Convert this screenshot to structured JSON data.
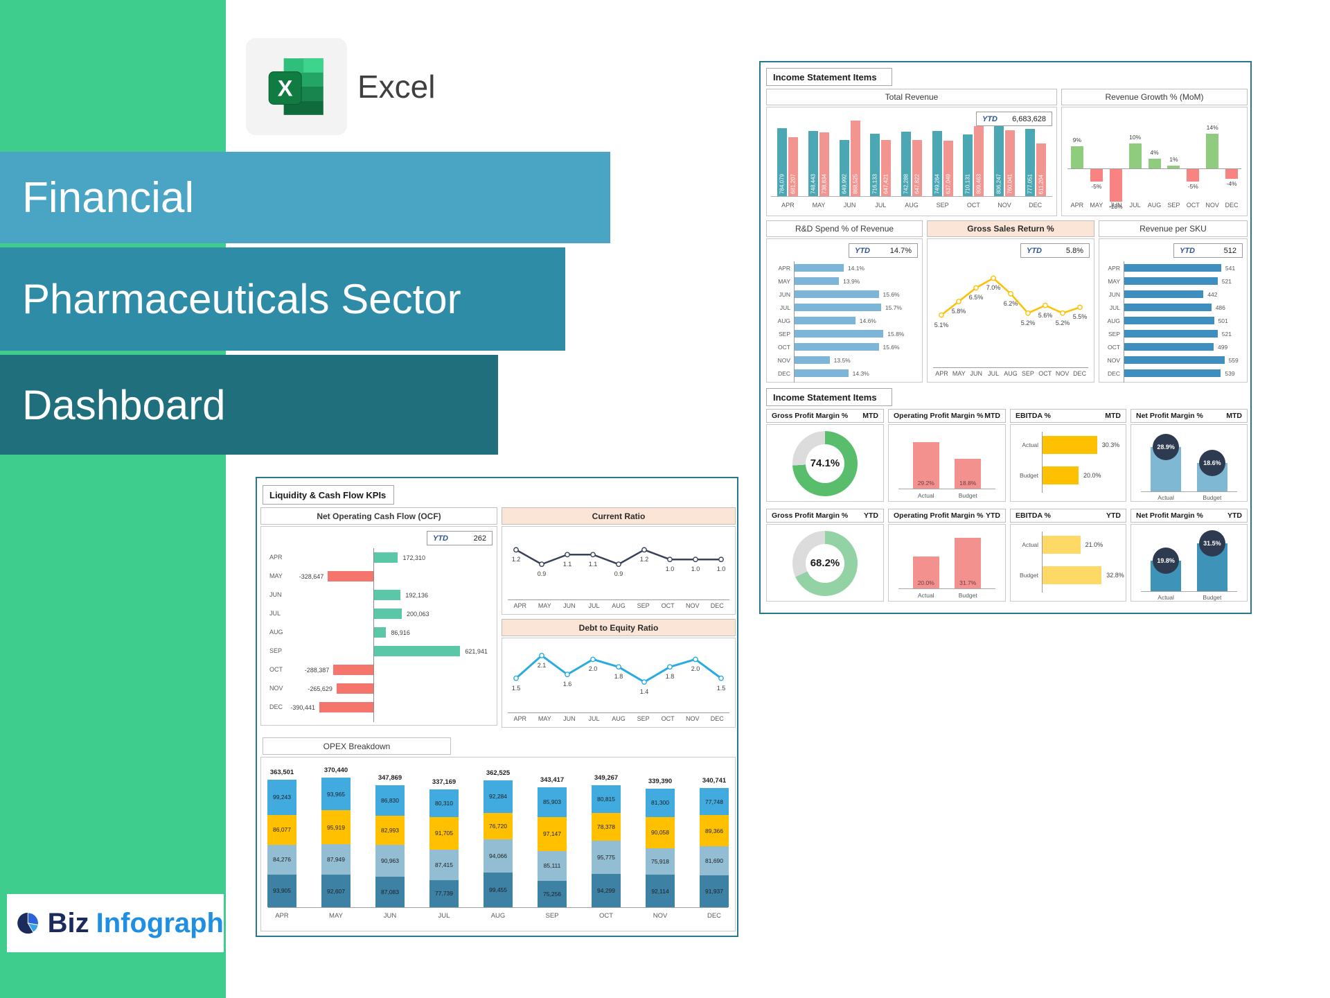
{
  "branding": {
    "app_label": "Excel",
    "excel_icon_letter": "X",
    "logo_biz": "Biz",
    "logo_infograph": "Infograph"
  },
  "titles": {
    "line1": "Financial",
    "line2": "Pharmaceuticals Sector",
    "line3": "Dashboard"
  },
  "right_panel": {
    "section1_label": "Income Statement Items",
    "section2_label": "Income Statement Items"
  },
  "left_panel": {
    "section_label": "Liquidity & Cash Flow KPIs"
  },
  "months": [
    "APR",
    "MAY",
    "JUN",
    "JUL",
    "AUG",
    "SEP",
    "OCT",
    "NOV",
    "DEC"
  ],
  "chart_data": [
    {
      "id": "total_revenue",
      "type": "bar",
      "title": "Total Revenue",
      "ytd_label": "YTD",
      "ytd_value": "6,683,628",
      "categories": [
        "APR",
        "MAY",
        "JUN",
        "JUL",
        "AUG",
        "SEP",
        "OCT",
        "NOV",
        "DEC"
      ],
      "series": [
        {
          "name": "series_1",
          "color": "#4BA7B3",
          "values": [
            784079,
            748443,
            649992,
            716133,
            742288,
            749264,
            710131,
            806247,
            777051
          ]
        },
        {
          "name": "series_2",
          "color": "#F2948F",
          "values": [
            681207,
            738834,
            868525,
            647421,
            647822,
            637049,
            809463,
            760041,
            611204
          ]
        }
      ]
    },
    {
      "id": "revenue_growth",
      "type": "bar",
      "title": "Revenue Growth % (MoM)",
      "categories": [
        "APR",
        "MAY",
        "JUN",
        "JUL",
        "AUG",
        "SEP",
        "OCT",
        "NOV",
        "DEC"
      ],
      "values": [
        9,
        -5,
        -13,
        10,
        4,
        1,
        -5,
        14,
        -4
      ],
      "unit": "%",
      "color_positive": "#90CC7E",
      "color_negative": "#F98380"
    },
    {
      "id": "rnd_spend",
      "type": "bar-horizontal",
      "title": "R&D Spend % of Revenue",
      "ytd_label": "YTD",
      "ytd_value": "14.7%",
      "categories": [
        "APR",
        "MAY",
        "JUN",
        "JUL",
        "AUG",
        "SEP",
        "OCT",
        "NOV",
        "DEC"
      ],
      "values": [
        14.1,
        13.9,
        15.6,
        15.7,
        14.6,
        15.8,
        15.6,
        13.5,
        14.3
      ],
      "unit": "%",
      "color": "#7CB5D8",
      "xlim": [
        12,
        16
      ]
    },
    {
      "id": "gross_sales_return",
      "type": "line",
      "title": "Gross Sales Return %",
      "ytd_label": "YTD",
      "ytd_value": "5.8%",
      "categories": [
        "APR",
        "MAY",
        "JUN",
        "JUL",
        "AUG",
        "SEP",
        "OCT",
        "NOV",
        "DEC"
      ],
      "values": [
        5.1,
        5.8,
        6.5,
        7.0,
        6.2,
        5.2,
        5.6,
        5.2,
        5.5
      ],
      "unit": "%",
      "color": "#FFC000",
      "ylim": [
        4.3,
        7.8
      ]
    },
    {
      "id": "revenue_per_sku",
      "type": "bar-horizontal",
      "title": "Revenue per SKU",
      "ytd_label": "YTD",
      "ytd_value": "512",
      "categories": [
        "APR",
        "MAY",
        "JUN",
        "JUL",
        "AUG",
        "SEP",
        "OCT",
        "NOV",
        "DEC"
      ],
      "values": [
        541,
        521,
        442,
        486,
        501,
        521,
        499,
        559,
        539
      ],
      "color": "#3E8FBF",
      "xlim": [
        0,
        580
      ]
    },
    {
      "id": "gross_profit_mtd",
      "type": "donut",
      "title": "Gross Profit Margin %",
      "period": "MTD",
      "value": 74.1,
      "label": "74.1%",
      "color": "#58BE6C",
      "track": "#DCDCDC"
    },
    {
      "id": "operating_profit_mtd",
      "type": "bar",
      "title": "Operating Profit Margin %",
      "period": "MTD",
      "categories": [
        "Actual",
        "Budget"
      ],
      "values": [
        29.2,
        18.8
      ],
      "labels": [
        "29.2%",
        "18.8%"
      ],
      "color": "#F2918D"
    },
    {
      "id": "ebitda_mtd",
      "type": "bar-horizontal",
      "title": "EBITDA %",
      "period": "MTD",
      "categories": [
        "Actual",
        "Budget"
      ],
      "values": [
        30.3,
        20.0
      ],
      "labels": [
        "30.3%",
        "20.0%"
      ],
      "color": "#FFC000"
    },
    {
      "id": "net_profit_mtd",
      "type": "bar",
      "title": "Net Profit Margin %",
      "period": "MTD",
      "categories": [
        "Actual",
        "Budget"
      ],
      "values": [
        28.9,
        18.6
      ],
      "labels": [
        "28.9%",
        "18.6%"
      ],
      "bar_color": "#7FB8D3",
      "badge_color": "#2E3A50"
    },
    {
      "id": "gross_profit_ytd",
      "type": "donut",
      "title": "Gross Profit Margin %",
      "period": "YTD",
      "value": 68.2,
      "label": "68.2%",
      "color": "#92D2A4",
      "track": "#DCDCDC"
    },
    {
      "id": "operating_profit_ytd",
      "type": "bar",
      "title": "Operating Profit Margin %",
      "period": "YTD",
      "categories": [
        "Actual",
        "Budget"
      ],
      "values": [
        20.0,
        31.7
      ],
      "labels": [
        "20.0%",
        "31.7%"
      ],
      "color": "#F2918D"
    },
    {
      "id": "ebitda_ytd",
      "type": "bar-horizontal",
      "title": "EBITDA %",
      "period": "YTD",
      "categories": [
        "Actual",
        "Budget"
      ],
      "values": [
        21.0,
        32.8
      ],
      "labels": [
        "21.0%",
        "32.8%"
      ],
      "color": "#FFD966"
    },
    {
      "id": "net_profit_ytd",
      "type": "bar",
      "title": "Net Profit Margin %",
      "period": "YTD",
      "categories": [
        "Actual",
        "Budget"
      ],
      "values": [
        19.8,
        31.5
      ],
      "labels": [
        "19.8%",
        "31.5%"
      ],
      "bar_color": "#3D93B8",
      "badge_color": "#2E3A50"
    },
    {
      "id": "ocf",
      "type": "bar-horizontal",
      "title": "Net Operating Cash Flow (OCF)",
      "ytd_label": "YTD",
      "ytd_value": "262",
      "categories": [
        "APR",
        "MAY",
        "JUN",
        "JUL",
        "AUG",
        "SEP",
        "OCT",
        "NOV",
        "DEC"
      ],
      "values": [
        172310,
        -328647,
        192136,
        200063,
        86916,
        621941,
        -288387,
        -265629,
        -390441
      ],
      "color_positive": "#5AC7A9",
      "color_negative": "#F4756B"
    },
    {
      "id": "current_ratio",
      "type": "line",
      "title": "Current Ratio",
      "categories": [
        "APR",
        "MAY",
        "JUN",
        "JUL",
        "AUG",
        "SEP",
        "OCT",
        "NOV",
        "DEC"
      ],
      "values": [
        1.2,
        0.9,
        1.1,
        1.1,
        0.9,
        1.2,
        1.0,
        1.0,
        1.0
      ],
      "color": "#37415A",
      "ylim": [
        0.7,
        1.45
      ]
    },
    {
      "id": "debt_to_equity",
      "type": "line",
      "title": "Debt to Equity Ratio",
      "categories": [
        "APR",
        "MAY",
        "JUN",
        "JUL",
        "AUG",
        "SEP",
        "OCT",
        "NOV",
        "DEC"
      ],
      "values": [
        1.5,
        2.1,
        1.6,
        2.0,
        1.8,
        1.4,
        1.8,
        2.0,
        1.5
      ],
      "color": "#29ABE2",
      "ylim": [
        1.2,
        2.3
      ]
    },
    {
      "id": "opex",
      "type": "stacked-bar",
      "title": "OPEX Breakdown",
      "categories": [
        "APR",
        "MAY",
        "JUN",
        "JUL",
        "AUG",
        "SEP",
        "OCT",
        "NOV",
        "DEC"
      ],
      "totals": [
        363501,
        370440,
        347869,
        337169,
        362525,
        343417,
        349267,
        339390,
        340741
      ],
      "series": [
        {
          "name": "segment_1",
          "color": "#3D81A5",
          "values": [
            93905,
            92607,
            87083,
            77739,
            99455,
            75256,
            94299,
            92114,
            91937
          ]
        },
        {
          "name": "segment_2",
          "color": "#92BDD3",
          "values": [
            84276,
            87949,
            90963,
            87415,
            94066,
            85111,
            95775,
            75918,
            81690
          ]
        },
        {
          "name": "segment_3",
          "color": "#FFC000",
          "values": [
            86077,
            95919,
            82993,
            91705,
            76720,
            97147,
            78378,
            90058,
            89366
          ]
        },
        {
          "name": "segment_4",
          "color": "#41AADF",
          "values": [
            99243,
            93965,
            86830,
            80310,
            92284,
            85903,
            80815,
            81300,
            77748
          ]
        }
      ]
    }
  ]
}
